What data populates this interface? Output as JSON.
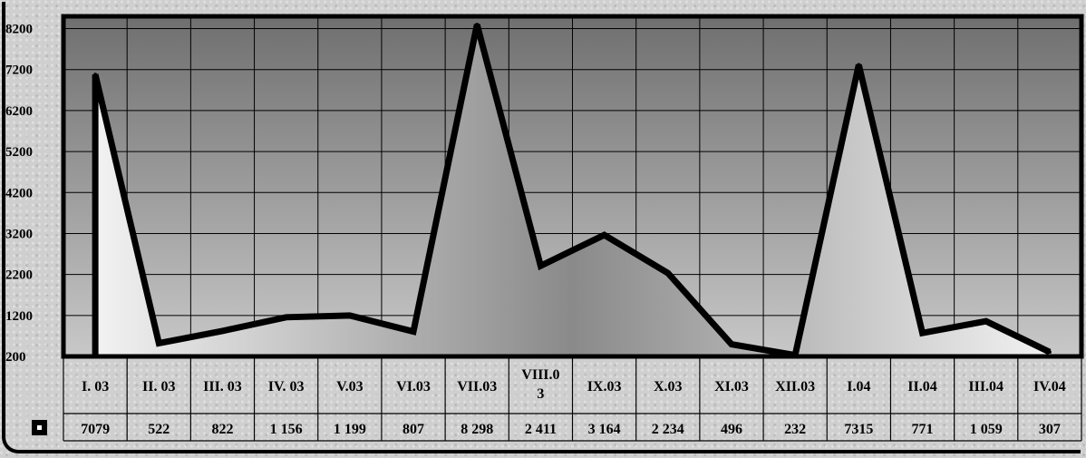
{
  "chart_data": {
    "type": "area",
    "categories": [
      "I. 03",
      "II. 03",
      "III. 03",
      "IV. 03",
      "V.03",
      "VI.03",
      "VII.03",
      "VIII.0 3",
      "IX.03",
      "X.03",
      "XI.03",
      "XII.03",
      "I.04",
      "II.04",
      "III.04",
      "IV.04"
    ],
    "category_lines": [
      [
        "I. 03"
      ],
      [
        "II. 03"
      ],
      [
        "III. 03"
      ],
      [
        "IV. 03"
      ],
      [
        "V.03"
      ],
      [
        "VI.03"
      ],
      [
        "VII.03"
      ],
      [
        "VIII.0",
        "3"
      ],
      [
        "IX.03"
      ],
      [
        "X.03"
      ],
      [
        "XI.03"
      ],
      [
        "XII.03"
      ],
      [
        "I.04"
      ],
      [
        "II.04"
      ],
      [
        "III.04"
      ],
      [
        "IV.04"
      ]
    ],
    "series": [
      {
        "values": [
          7079,
          522,
          822,
          1156,
          1199,
          807,
          8298,
          2411,
          3164,
          2234,
          496,
          232,
          7315,
          771,
          1059,
          307
        ]
      }
    ],
    "value_labels": [
      "7079",
      "522",
      "822",
      "1 156",
      "1 199",
      "807",
      "8 298",
      "2 411",
      "3 164",
      "2 234",
      "496",
      "232",
      "7315",
      "771",
      "1 059",
      "307"
    ],
    "yticks": [
      200,
      1200,
      2200,
      3200,
      4200,
      5200,
      6200,
      7200,
      8200
    ],
    "ylim": [
      200,
      8500
    ],
    "grid": true,
    "legend": "data-table",
    "colors": {
      "plot_top": "#6f6f6f",
      "plot_bottom": "#c8c8c8",
      "area_light": "#f2f2f2",
      "area_dark": "#8a8a8a",
      "line": "#000000",
      "legend_key": "#000000"
    }
  }
}
